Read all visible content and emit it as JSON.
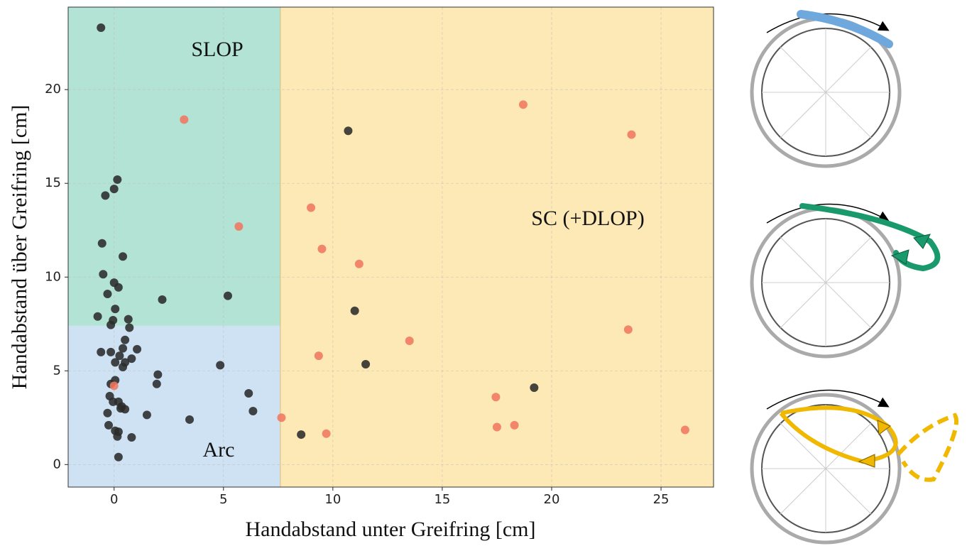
{
  "chart_data": {
    "type": "scatter",
    "xlabel": "Handabstand unter Greifring [cm]",
    "ylabel": "Handabstand über Greifring [cm]",
    "xlim": [
      -2.1,
      27.4
    ],
    "ylim": [
      -1.2,
      24.4
    ],
    "xticks": [
      0,
      5,
      10,
      15,
      20,
      25
    ],
    "yticks": [
      0,
      5,
      10,
      15,
      20
    ],
    "grid": true,
    "regions": [
      {
        "label": "SLOP",
        "color": "#b3e3d5",
        "x": [
          -2.1,
          7.6
        ],
        "y": [
          7.4,
          24.4
        ]
      },
      {
        "label": "Arc",
        "color": "#cfe2f3",
        "x": [
          -2.1,
          7.6
        ],
        "y": [
          -1.2,
          7.4
        ]
      },
      {
        "label": "SC (+DLOP)",
        "color": "#fde9b5",
        "x": [
          7.6,
          27.4
        ],
        "y": [
          -1.2,
          24.4
        ]
      }
    ],
    "series": [
      {
        "color": "#2b2b2b",
        "x": [
          -0.6,
          10.7,
          0.15,
          0,
          -0.4,
          -0.55,
          0.4,
          -0.5,
          0,
          -0.3,
          0.2,
          2.2,
          5.2,
          0.05,
          -0.75,
          0.65,
          -0.05,
          -0.15,
          0.7,
          11.0,
          0.5,
          0.4,
          1.05,
          -0.6,
          -0.15,
          0.25,
          0.8,
          0.5,
          0.05,
          0.4,
          4.85,
          11.5,
          2.0,
          0.05,
          -0.15,
          1.95,
          19.2,
          6.15,
          -0.2,
          -0.05,
          0.2,
          0.35,
          0.5,
          0.3,
          6.35,
          -0.3,
          1.5,
          3.45,
          -0.25,
          0.05,
          0.2,
          0.15,
          0.8,
          8.55,
          0.2
        ],
        "y": [
          23.3,
          17.8,
          15.2,
          14.7,
          14.35,
          11.8,
          11.1,
          10.15,
          9.7,
          9.1,
          9.45,
          8.8,
          9.0,
          8.3,
          7.9,
          7.75,
          7.7,
          7.45,
          7.3,
          8.2,
          6.65,
          6.2,
          6.15,
          6.0,
          6.0,
          5.8,
          5.65,
          5.45,
          5.45,
          5.2,
          5.3,
          5.35,
          4.8,
          4.5,
          4.3,
          4.3,
          4.1,
          3.8,
          3.65,
          3.35,
          3.35,
          3.1,
          2.95,
          3.0,
          2.85,
          2.75,
          2.65,
          2.4,
          2.1,
          1.8,
          1.75,
          1.5,
          1.45,
          1.6,
          0.4
        ]
      },
      {
        "color": "#f07860",
        "x": [
          3.2,
          18.7,
          23.65,
          9.0,
          5.7,
          9.5,
          11.2,
          23.5,
          13.5,
          9.35,
          0,
          17.45,
          7.65,
          17.5,
          18.3,
          9.7,
          26.1
        ],
        "y": [
          18.4,
          19.2,
          17.6,
          13.7,
          12.7,
          11.5,
          10.7,
          7.2,
          6.6,
          5.8,
          4.2,
          3.6,
          2.5,
          2.0,
          2.1,
          1.65,
          1.85
        ]
      }
    ]
  }
}
